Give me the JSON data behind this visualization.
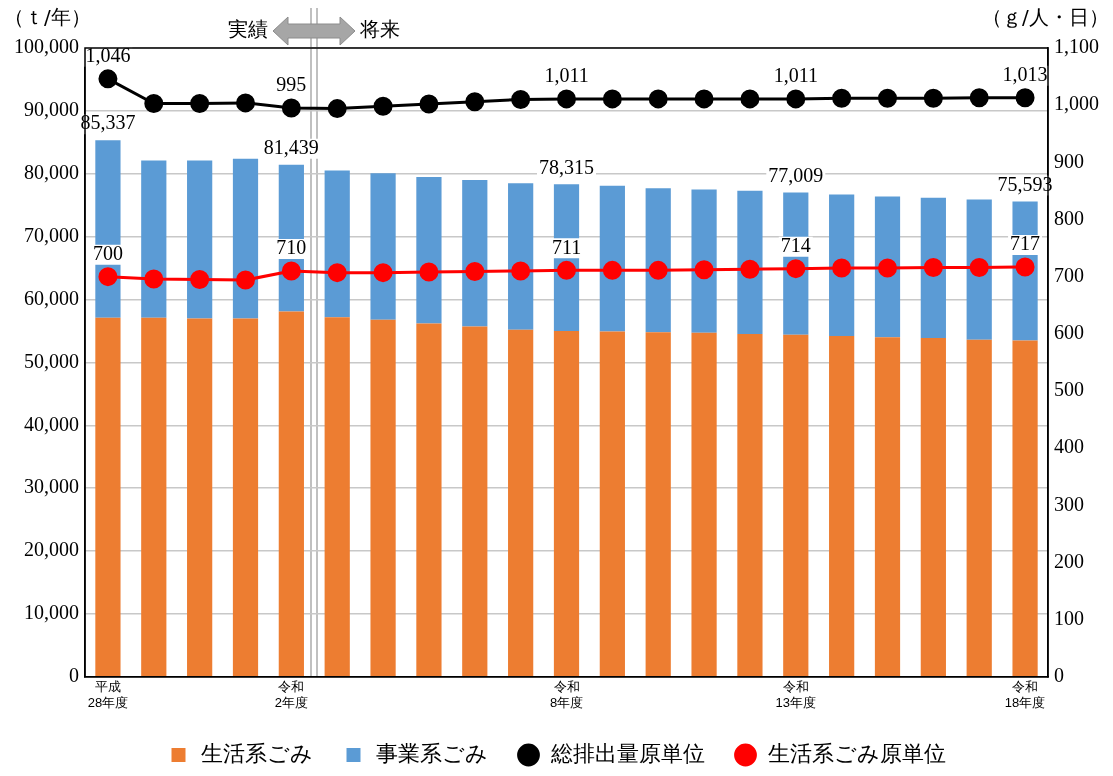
{
  "chart_data": {
    "type": "bar",
    "ylabel": "（ｔ/年）",
    "y2label": "（ｇ/人・日）",
    "annotations": [
      "実績",
      "将来"
    ],
    "categories": [
      "平成\n28年度",
      null,
      null,
      null,
      "令和\n2年度",
      null,
      null,
      null,
      null,
      null,
      "令和\n8年度",
      null,
      null,
      null,
      null,
      "令和\n13年度",
      null,
      null,
      null,
      null,
      "令和\n18年度"
    ],
    "stacked": true,
    "grid": "y",
    "legend": "bottom",
    "marker": "circle",
    "ylim": [
      0,
      100000
    ],
    "yticks": [
      0,
      {
        "value": 10000,
        "label": "10,000"
      },
      {
        "value": 20000,
        "label": "20,000"
      },
      {
        "value": 30000,
        "label": "30,000"
      },
      {
        "value": 40000,
        "label": "40,000"
      },
      {
        "value": 50000,
        "label": "50,000"
      },
      {
        "value": 60000,
        "label": "60,000"
      },
      {
        "value": 70000,
        "label": "70,000"
      },
      {
        "value": 80000,
        "label": "80,000"
      },
      {
        "value": 90000,
        "label": "90,000"
      },
      {
        "value": 100000,
        "label": "100,000"
      }
    ],
    "y2lim": [
      0,
      1100
    ],
    "y2ticks": [
      0,
      100,
      200,
      300,
      400,
      500,
      600,
      700,
      800,
      900,
      {
        "value": 1000,
        "label": "1,000"
      },
      {
        "value": 1100,
        "label": "1,100"
      }
    ],
    "totals": [
      "85,337",
      null,
      null,
      null,
      "81,439",
      null,
      null,
      null,
      null,
      null,
      "78,315",
      null,
      null,
      null,
      null,
      "77,009",
      null,
      null,
      null,
      null,
      "75,593"
    ],
    "series": [
      {
        "name": "生活系ごみ",
        "color": "#ed7d31",
        "values": [
          57100,
          57100,
          57000,
          57000,
          58100,
          57200,
          56800,
          56200,
          55700,
          55200,
          55000,
          54900,
          54800,
          54700,
          54500,
          54400,
          54200,
          54000,
          53900,
          53600,
          53500
        ]
      },
      {
        "name": "事業系ごみ",
        "color": "#5b9bd5",
        "values": [
          28237,
          25000,
          25100,
          25400,
          23339,
          23300,
          23300,
          23300,
          23300,
          23300,
          23315,
          23200,
          22900,
          22800,
          22800,
          22609,
          22500,
          22400,
          22300,
          22300,
          22093
        ]
      },
      {
        "name": "総排出量原単位",
        "type": "line",
        "axis": "y2",
        "color": "#000000",
        "values": [
          1046,
          1003,
          1003,
          1004,
          995,
          994,
          998,
          1002,
          1006,
          1010,
          1011,
          1011,
          1011,
          1011,
          1011,
          1011,
          1012,
          1012,
          1012,
          1013,
          1013
        ],
        "value_labels": [
          "1,046",
          null,
          null,
          null,
          "995",
          null,
          null,
          null,
          null,
          null,
          "1,011",
          null,
          null,
          null,
          null,
          "1,011",
          null,
          null,
          null,
          null,
          "1,013"
        ]
      },
      {
        "name": "生活系ごみ原単位",
        "type": "line",
        "axis": "y2",
        "color": "#ff0000",
        "values": [
          700,
          696,
          695,
          694,
          710,
          707,
          707,
          708,
          709,
          710,
          711,
          711,
          711,
          712,
          713,
          714,
          715,
          715,
          716,
          716,
          717
        ],
        "value_labels": [
          "700",
          null,
          null,
          null,
          "710",
          null,
          null,
          null,
          null,
          null,
          "711",
          null,
          null,
          null,
          null,
          "714",
          null,
          null,
          null,
          null,
          "717"
        ]
      }
    ]
  }
}
